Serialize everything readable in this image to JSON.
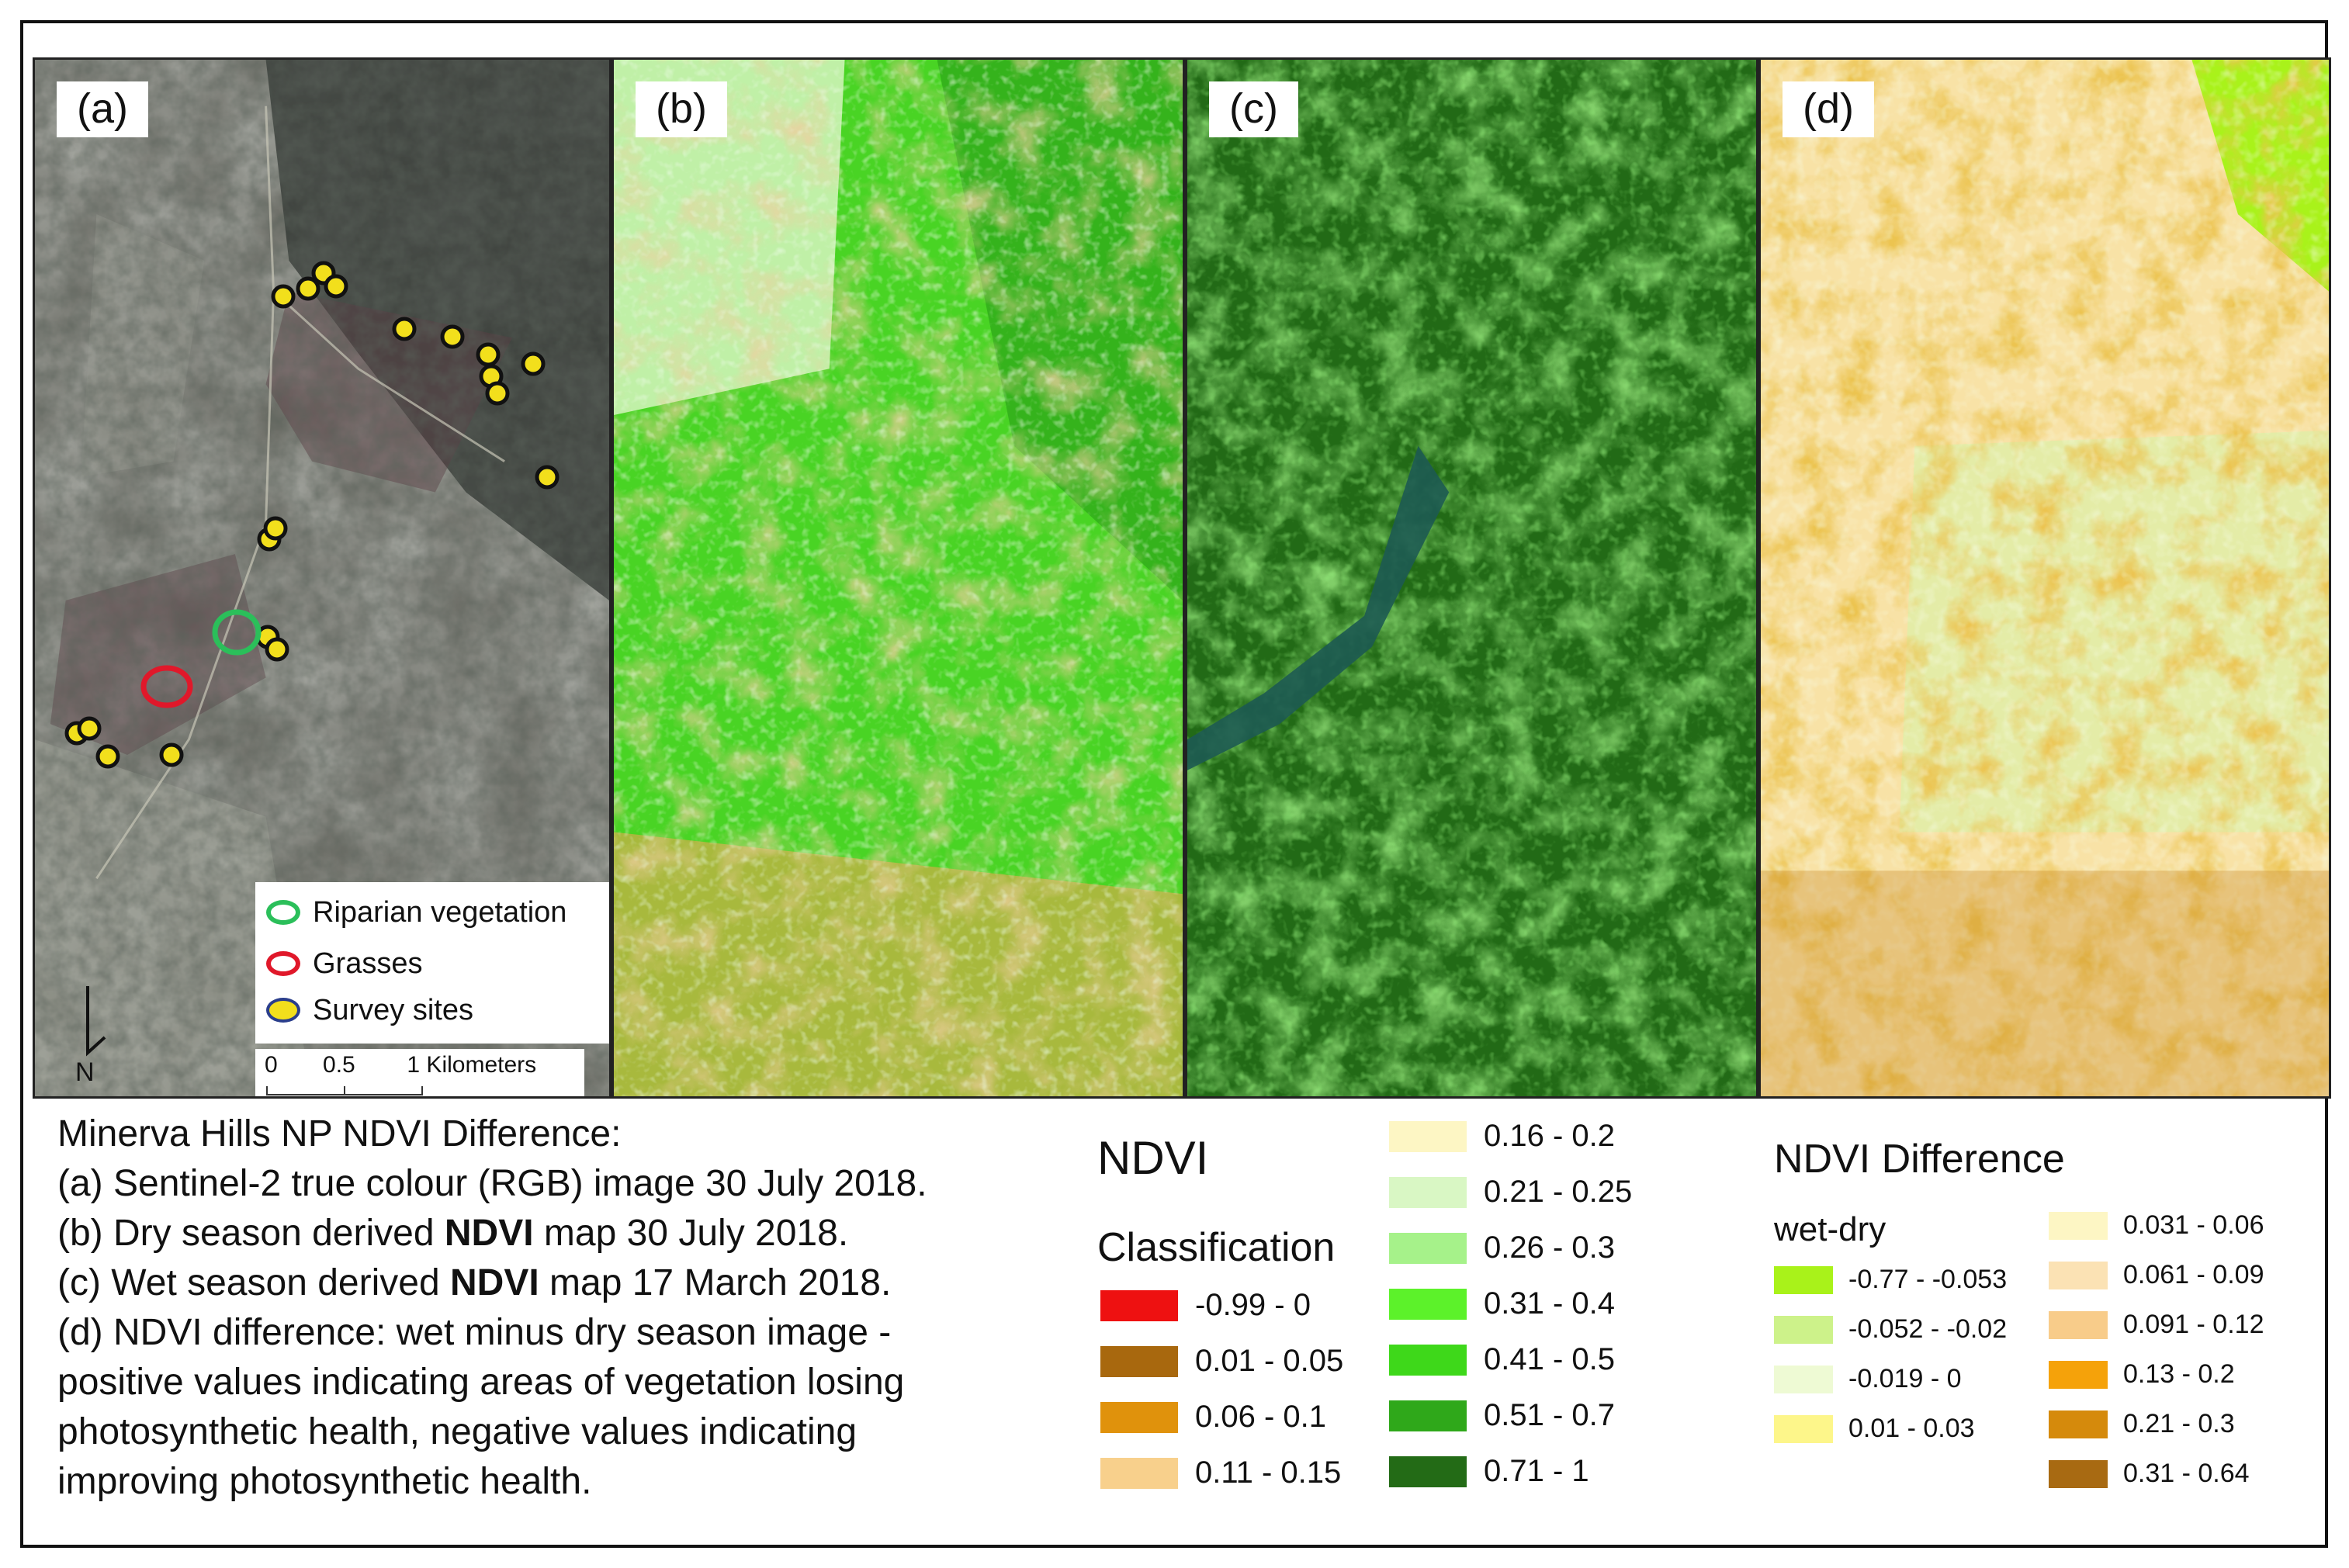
{
  "panels": {
    "a": {
      "label": "(a)"
    },
    "b": {
      "label": "(b)"
    },
    "c": {
      "label": "(c)"
    },
    "d": {
      "label": "(d)"
    }
  },
  "map_legend": {
    "items": [
      {
        "label": "Riparian vegetation",
        "color": "#2bbf5a"
      },
      {
        "label": "Grasses",
        "color": "#e0182a"
      },
      {
        "label": "Survey sites",
        "color": "#f2df1c"
      }
    ]
  },
  "scalebar": {
    "ticks": "0       0.5        1 Kilometers"
  },
  "north_arrow": {
    "label": "N"
  },
  "caption": {
    "title": "Minerva Hills NP NDVI Difference:",
    "line_a": "(a) Sentinel-2 true colour (RGB) image 30 July 2018.",
    "line_b_pre": "(b) Dry season derived ",
    "line_b_bold": "NDVI",
    "line_b_post": " map 30 July 2018.",
    "line_c_pre": "(c) Wet season derived ",
    "line_c_bold": "NDVI",
    "line_c_post": " map 17 March 2018.",
    "line_d1": "(d) NDVI difference: wet minus dry season image -",
    "line_d2": "positive values indicating areas of vegetation losing",
    "line_d3": "photosynthetic health, negative values indicating",
    "line_d4": "improving photosynthetic health."
  },
  "ndvi_legend": {
    "title": "NDVI",
    "subtitle": "Classification",
    "col1": [
      {
        "label": "-0.99 - 0",
        "color": "#ee1111"
      },
      {
        "label": "0.01 - 0.05",
        "color": "#a8680e"
      },
      {
        "label": "0.06 - 0.1",
        "color": "#e0920c"
      },
      {
        "label": "0.11 - 0.15",
        "color": "#f8d08c"
      }
    ],
    "col2": [
      {
        "label": "0.16 - 0.2",
        "color": "#fdf6c4"
      },
      {
        "label": "0.21 - 0.25",
        "color": "#d9f7c4"
      },
      {
        "label": "0.26 - 0.3",
        "color": "#a6f28a"
      },
      {
        "label": "0.31 - 0.4",
        "color": "#5cf22a"
      },
      {
        "label": "0.41 - 0.5",
        "color": "#3ed81a"
      },
      {
        "label": "0.51 - 0.7",
        "color": "#2fa81a"
      },
      {
        "label": "0.71 - 1",
        "color": "#236b16"
      }
    ]
  },
  "diff_legend": {
    "title": "NDVI Difference",
    "subtitle": "wet-dry",
    "col1": [
      {
        "label": "-0.77 - -0.053",
        "color": "#a9f21a"
      },
      {
        "label": "-0.052 - -0.02",
        "color": "#cdf28a"
      },
      {
        "label": "-0.019 - 0",
        "color": "#eefad4"
      },
      {
        "label": "0.01 - 0.03",
        "color": "#fdf68a"
      }
    ],
    "col2": [
      {
        "label": "0.031 - 0.06",
        "color": "#fdf6c4"
      },
      {
        "label": "0.061 - 0.09",
        "color": "#fbe2b4"
      },
      {
        "label": "0.091 - 0.12",
        "color": "#f8cc8a"
      },
      {
        "label": "0.13 - 0.2",
        "color": "#f5a20a"
      },
      {
        "label": "0.21 - 0.3",
        "color": "#d58a0c"
      },
      {
        "label": "0.31 - 0.64",
        "color": "#a86a12"
      }
    ]
  }
}
